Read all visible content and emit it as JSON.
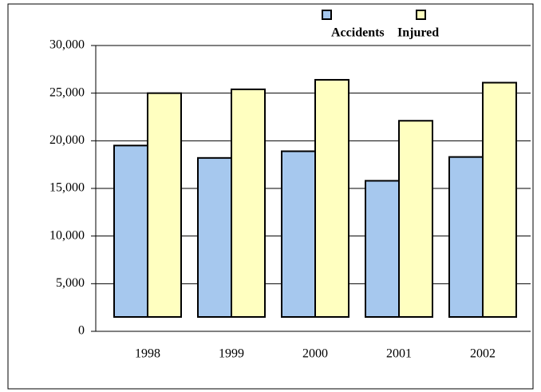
{
  "chart_data": {
    "type": "bar",
    "categories": [
      "1998",
      "1999",
      "2000",
      "2001",
      "2002"
    ],
    "series": [
      {
        "name": "Accidents",
        "color": "#a6c8ee",
        "values": [
          19500,
          18200,
          18900,
          15800,
          18300
        ]
      },
      {
        "name": "Injured",
        "color": "#ffffc0",
        "values": [
          25000,
          25400,
          26400,
          22100,
          26100
        ]
      }
    ],
    "ylim": [
      0,
      30000
    ],
    "yticks": [
      {
        "value": 0,
        "label": "0"
      },
      {
        "value": 5000,
        "label": "5,000"
      },
      {
        "value": 10000,
        "label": "10,000"
      },
      {
        "value": 15000,
        "label": "15,000"
      },
      {
        "value": 20000,
        "label": "20,000"
      },
      {
        "value": 25000,
        "label": "25,000"
      },
      {
        "value": 30000,
        "label": "30,000"
      }
    ],
    "grid": true
  }
}
